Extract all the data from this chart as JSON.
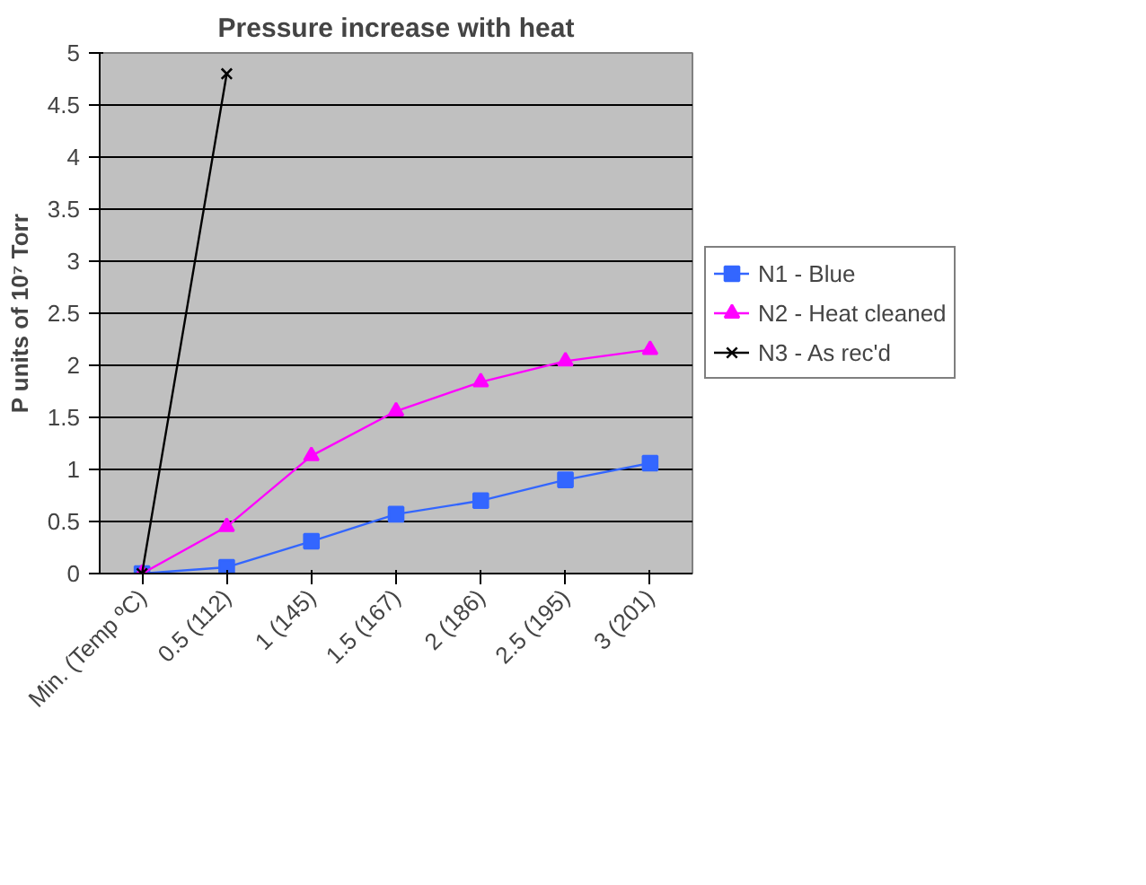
{
  "chart_data": {
    "type": "line",
    "title": "Pressure increase with heat",
    "ylabel": "P units of 10⁷ Torr",
    "categories": [
      "Min. (Temp ºC)",
      "0.5 (112)",
      "1 (145)",
      "1.5 (167)",
      "2 (186)",
      "2.5 (195)",
      "3 (201)"
    ],
    "series": [
      {
        "name": "N1 - Blue",
        "color": "#3366ff",
        "marker": "square",
        "values": [
          0,
          0.06,
          0.31,
          0.57,
          0.7,
          0.9,
          1.06
        ]
      },
      {
        "name": "N2 - Heat cleaned",
        "color": "#ff00ff",
        "marker": "triangle",
        "values": [
          0,
          0.45,
          1.13,
          1.56,
          1.84,
          2.04,
          2.15
        ]
      },
      {
        "name": "N3 - As rec'd",
        "color": "#000000",
        "marker": "cross",
        "values": [
          0,
          4.8,
          null,
          null,
          null,
          null,
          null
        ]
      }
    ],
    "ylim": [
      0,
      5
    ],
    "yticks": [
      0,
      0.5,
      1,
      1.5,
      2,
      2.5,
      3,
      3.5,
      4,
      4.5,
      5
    ],
    "grid": "y",
    "legend": "right"
  }
}
